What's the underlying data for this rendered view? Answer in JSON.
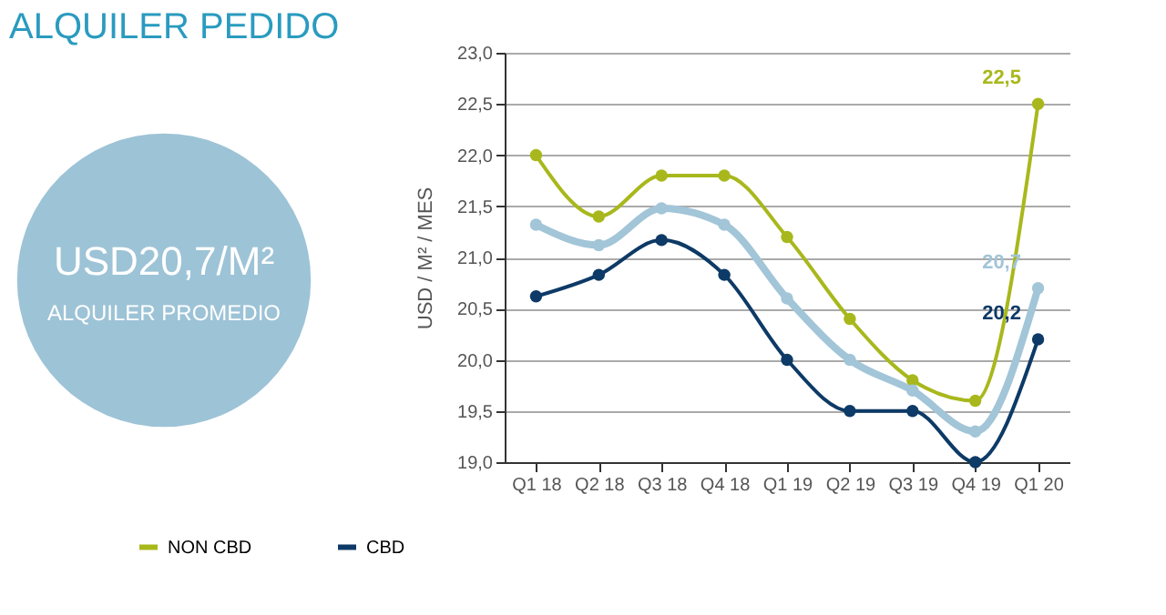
{
  "chart_data": [
    {
      "type": "other",
      "title": "ALQUILER PEDIDO",
      "annotations": [
        "USD20,7/M²",
        "ALQUILER PROMEDIO"
      ]
    },
    {
      "type": "line",
      "ylabel": "USD / M² / MES",
      "categories": [
        "Q1 18",
        "Q2 18",
        "Q3 18",
        "Q4 18",
        "Q1 19",
        "Q2 19",
        "Q3 19",
        "Q4 19",
        "Q1 20"
      ],
      "ylim": [
        19,
        23
      ],
      "yticks": [
        {
          "value": 19,
          "label": "19,0"
        },
        {
          "value": 19.5,
          "label": "19,5"
        },
        {
          "value": 20,
          "label": "20,0"
        },
        {
          "value": 20.5,
          "label": "20,5"
        },
        {
          "value": 21,
          "label": "21,0"
        },
        {
          "value": 21.5,
          "label": "21,5"
        },
        {
          "value": 22,
          "label": "22,0"
        },
        {
          "value": 22.5,
          "label": "22,5"
        },
        {
          "value": 23,
          "label": "23,0"
        }
      ],
      "grid": "y",
      "legend": "bottom",
      "marker": "circle",
      "series": [
        {
          "name": "NON CBD",
          "color": "#a8b81c",
          "values": [
            22.0,
            21.4,
            21.8,
            21.8,
            21.2,
            20.4,
            19.8,
            19.6,
            22.5
          ],
          "value_labels": [
            null,
            null,
            null,
            null,
            null,
            null,
            null,
            null,
            "22,5"
          ]
        },
        {
          "color": "#a2c5d8",
          "values": [
            21.32,
            21.12,
            21.48,
            21.32,
            20.6,
            20.0,
            19.7,
            19.3,
            20.7
          ],
          "value_labels": [
            null,
            null,
            null,
            null,
            null,
            null,
            null,
            null,
            "20,7"
          ]
        },
        {
          "name": "CBD",
          "color": "#0d3a66",
          "values": [
            20.62,
            20.83,
            21.17,
            20.83,
            20.0,
            19.5,
            19.5,
            19.0,
            20.2
          ],
          "value_labels": [
            null,
            null,
            null,
            null,
            null,
            null,
            null,
            null,
            "20,2"
          ]
        }
      ]
    }
  ]
}
